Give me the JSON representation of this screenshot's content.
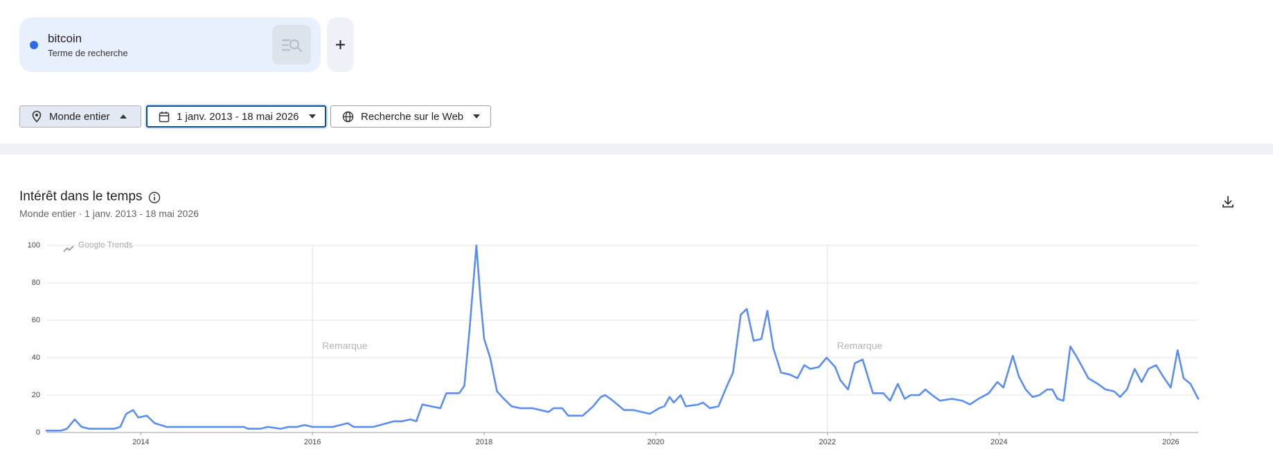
{
  "search": {
    "term_type": "Terme de recherche"
  },
  "filters": {
    "region": "Monde entier",
    "period": "1 janv. 2013 - 18 mai 2026",
    "property": "Recherche sur le Web"
  },
  "chart_data": {
    "type": "line",
    "title": "Intérêt dans le temps",
    "subtitle": "Monde entier · 1 janv. 2013 - 18 mai 2026",
    "watermark": "Google Trends",
    "x": [
      2012.9,
      2013.07,
      2013.14,
      2013.23,
      2013.31,
      2013.4,
      2013.69,
      2013.76,
      2013.83,
      2013.91,
      2013.97,
      2014.07,
      2014.16,
      2014.3,
      2015.2,
      2015.25,
      2015.39,
      2015.48,
      2015.63,
      2015.72,
      2015.82,
      2015.91,
      2016.0,
      2016.24,
      2016.41,
      2016.48,
      2016.71,
      2016.95,
      2017.04,
      2017.14,
      2017.21,
      2017.28,
      2017.38,
      2017.49,
      2017.56,
      2017.71,
      2017.77,
      2017.83,
      2017.91,
      2017.96,
      2018.0,
      2018.07,
      2018.15,
      2018.23,
      2018.32,
      2018.42,
      2018.56,
      2018.75,
      2018.81,
      2018.91,
      2018.98,
      2019.15,
      2019.27,
      2019.36,
      2019.41,
      2019.5,
      2019.63,
      2019.74,
      2019.93,
      2020.04,
      2020.1,
      2020.16,
      2020.21,
      2020.29,
      2020.35,
      2020.5,
      2020.55,
      2020.63,
      2020.73,
      2020.83,
      2020.9,
      2020.99,
      2021.06,
      2021.14,
      2021.23,
      2021.3,
      2021.37,
      2021.46,
      2021.56,
      2021.65,
      2021.73,
      2021.8,
      2021.9,
      2021.99,
      2022.09,
      2022.15,
      2022.24,
      2022.32,
      2022.41,
      2022.53,
      2022.65,
      2022.73,
      2022.82,
      2022.9,
      2022.97,
      2023.07,
      2023.14,
      2023.22,
      2023.31,
      2023.45,
      2023.57,
      2023.66,
      2023.76,
      2023.88,
      2023.98,
      2024.05,
      2024.16,
      2024.23,
      2024.31,
      2024.39,
      2024.47,
      2024.56,
      2024.62,
      2024.68,
      2024.75,
      2024.83,
      2024.91,
      2025.04,
      2025.15,
      2025.24,
      2025.34,
      2025.41,
      2025.49,
      2025.58,
      2025.66,
      2025.74,
      2025.83,
      2025.91,
      2026.0,
      2026.08,
      2026.15,
      2026.23,
      2026.32
    ],
    "series": [
      {
        "name": "bitcoin",
        "color": "#5b8def",
        "values": [
          1,
          1,
          2,
          7,
          3,
          2,
          2,
          3,
          10,
          12,
          8,
          9,
          5,
          3,
          3,
          2,
          2,
          3,
          2,
          3,
          3,
          4,
          3,
          3,
          5,
          3,
          3,
          6,
          6,
          7,
          6,
          15,
          14,
          13,
          21,
          21,
          25,
          55,
          100,
          70,
          50,
          40,
          22,
          18,
          14,
          13,
          13,
          11,
          13,
          13,
          9,
          9,
          14,
          19,
          20,
          17,
          12,
          12,
          10,
          13,
          14,
          19,
          16,
          20,
          14,
          15,
          16,
          13,
          14,
          25,
          32,
          63,
          66,
          49,
          50,
          65,
          45,
          32,
          31,
          29,
          36,
          34,
          35,
          40,
          35,
          28,
          23,
          37,
          39,
          21,
          21,
          17,
          26,
          18,
          20,
          20,
          23,
          20,
          17,
          18,
          17,
          15,
          18,
          21,
          27,
          24,
          41,
          30,
          23,
          19,
          20,
          23,
          23,
          18,
          17,
          46,
          40,
          29,
          26,
          23,
          22,
          19,
          23,
          34,
          27,
          34,
          36,
          30,
          24,
          44,
          29,
          26,
          18
        ]
      }
    ],
    "xlim": [
      2012.9,
      2026.32
    ],
    "ylim": [
      0,
      100
    ],
    "xticks": [
      2014,
      2016,
      2018,
      2020,
      2022,
      2024,
      2026
    ],
    "yticks": [
      0,
      20,
      40,
      60,
      80,
      100
    ],
    "grid": true,
    "annotations": [
      {
        "text": "Remarque",
        "x": 2016
      },
      {
        "text": "Remarque",
        "x": 2022
      }
    ]
  }
}
